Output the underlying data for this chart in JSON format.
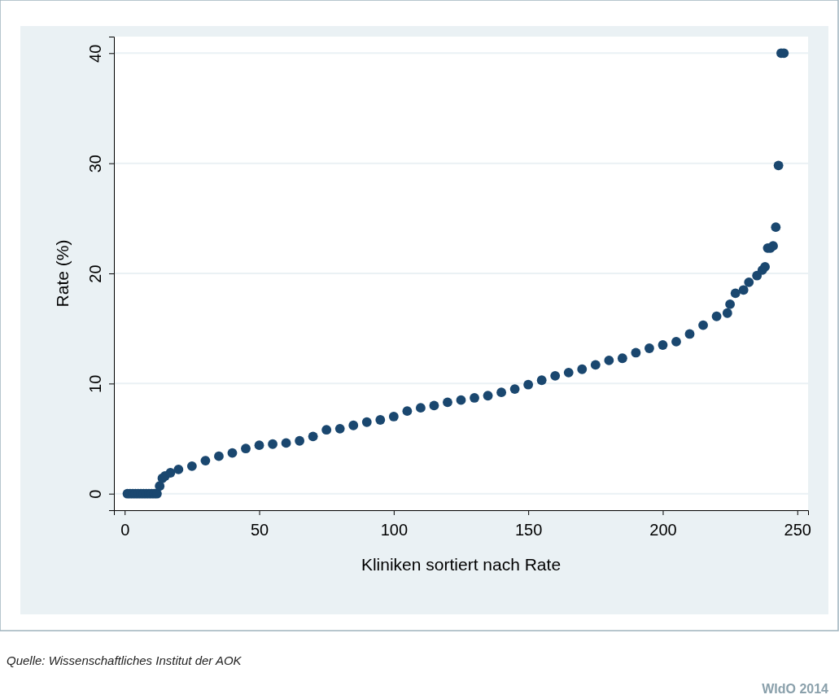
{
  "chart_data": {
    "type": "scatter",
    "xlabel": "Kliniken sortiert nach Rate",
    "ylabel": "Rate (%)",
    "x": [
      1,
      2,
      3,
      4,
      5,
      6,
      7,
      8,
      9,
      10,
      11,
      12,
      13,
      14,
      15,
      17,
      20,
      25,
      30,
      35,
      40,
      45,
      50,
      55,
      60,
      65,
      70,
      75,
      80,
      85,
      90,
      95,
      100,
      105,
      110,
      115,
      120,
      125,
      130,
      135,
      140,
      145,
      150,
      155,
      160,
      165,
      170,
      175,
      180,
      185,
      190,
      195,
      200,
      205,
      210,
      215,
      220,
      224,
      225,
      227,
      230,
      232,
      235,
      237,
      238,
      239,
      240,
      241,
      242,
      243,
      244,
      245
    ],
    "values": [
      0,
      0,
      0,
      0,
      0,
      0,
      0,
      0,
      0,
      0,
      0,
      0,
      0.7,
      1.4,
      1.6,
      1.9,
      2.2,
      2.5,
      3.0,
      3.4,
      3.7,
      4.1,
      4.4,
      4.5,
      4.6,
      4.8,
      5.2,
      5.8,
      5.9,
      6.2,
      6.5,
      6.7,
      7.0,
      7.5,
      7.8,
      8.0,
      8.3,
      8.5,
      8.7,
      8.9,
      9.2,
      9.5,
      9.9,
      10.3,
      10.7,
      11.0,
      11.3,
      11.7,
      12.1,
      12.3,
      12.8,
      13.2,
      13.5,
      13.8,
      14.5,
      15.3,
      16.1,
      16.4,
      17.2,
      18.2,
      18.5,
      19.2,
      19.8,
      20.3,
      20.6,
      22.3,
      22.3,
      22.5,
      24.2,
      29.8,
      40,
      40
    ],
    "color": "#1a476f",
    "marker": "circle",
    "grid": "y",
    "xlim": [
      -4,
      254
    ],
    "ylim": [
      -1.5,
      41.5
    ],
    "xticks": [
      0,
      50,
      100,
      150,
      200,
      250
    ],
    "yticks": [
      0,
      10,
      20,
      30,
      40
    ],
    "annotations": [
      "Quelle: Wissenschaftliches Institut der AOK",
      "WIdO 2014"
    ]
  }
}
